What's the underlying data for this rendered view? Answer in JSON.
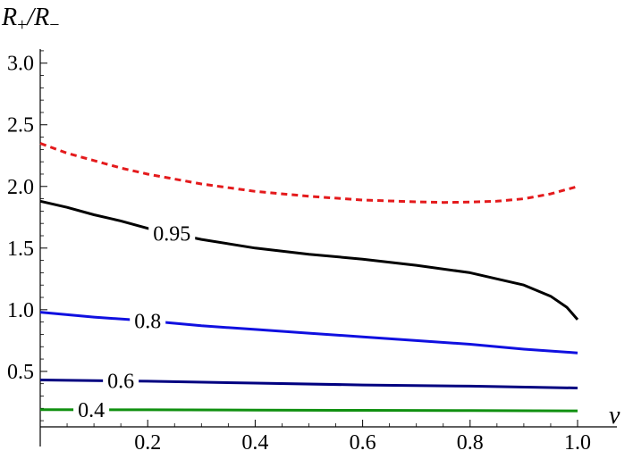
{
  "chart_data": {
    "type": "line",
    "title": "",
    "xlabel": "ν",
    "ylabel": {
      "main": "R",
      "sub1": "+",
      "sep": "/R",
      "sub2": "−"
    },
    "xlim": [
      0,
      1
    ],
    "ylim": [
      0.05,
      3.15
    ],
    "xticks": [
      0.2,
      0.4,
      0.6,
      0.8,
      1.0
    ],
    "xtick_labels": [
      "0.2",
      "0.4",
      "0.6",
      "0.8",
      "1.0"
    ],
    "yticks": [
      0.5,
      1.0,
      1.5,
      2.0,
      2.5,
      3.0
    ],
    "ytick_labels": [
      "0.5",
      "1.0",
      "1.5",
      "2.0",
      "2.5",
      "3.0"
    ],
    "grid": false,
    "legend": "none",
    "series": [
      {
        "label": "",
        "color": "#e41a1c",
        "dashed": true,
        "x": [
          0.0,
          0.05,
          0.1,
          0.15,
          0.2,
          0.3,
          0.4,
          0.5,
          0.6,
          0.7,
          0.75,
          0.8,
          0.85,
          0.9,
          0.95,
          1.0
        ],
        "y": [
          2.35,
          2.27,
          2.21,
          2.15,
          2.1,
          2.02,
          1.96,
          1.92,
          1.89,
          1.875,
          1.87,
          1.873,
          1.88,
          1.9,
          1.94,
          2.0
        ]
      },
      {
        "label": "0.95",
        "label_x": 0.245,
        "color": "#000000",
        "dashed": false,
        "x": [
          0.0,
          0.05,
          0.1,
          0.15,
          0.2,
          0.3,
          0.4,
          0.5,
          0.6,
          0.7,
          0.8,
          0.85,
          0.9,
          0.95,
          0.98,
          1.0
        ],
        "y": [
          1.88,
          1.83,
          1.77,
          1.72,
          1.66,
          1.57,
          1.5,
          1.45,
          1.41,
          1.36,
          1.3,
          1.25,
          1.2,
          1.11,
          1.02,
          0.92
        ]
      },
      {
        "label": "0.8",
        "label_x": 0.2,
        "color": "#1010e0",
        "dashed": false,
        "x": [
          0.0,
          0.1,
          0.2,
          0.3,
          0.4,
          0.5,
          0.6,
          0.7,
          0.8,
          0.9,
          1.0
        ],
        "y": [
          0.98,
          0.94,
          0.91,
          0.87,
          0.84,
          0.81,
          0.78,
          0.75,
          0.72,
          0.68,
          0.65
        ]
      },
      {
        "label": "0.6",
        "label_x": 0.15,
        "color": "#000080",
        "dashed": false,
        "x": [
          0.0,
          0.2,
          0.4,
          0.6,
          0.8,
          1.0
        ],
        "y": [
          0.43,
          0.42,
          0.405,
          0.39,
          0.38,
          0.365
        ]
      },
      {
        "label": "0.4",
        "label_x": 0.095,
        "color": "#109010",
        "dashed": false,
        "x": [
          0.0,
          0.2,
          0.4,
          0.6,
          0.8,
          1.0
        ],
        "y": [
          0.19,
          0.188,
          0.186,
          0.184,
          0.182,
          0.18
        ]
      }
    ]
  }
}
